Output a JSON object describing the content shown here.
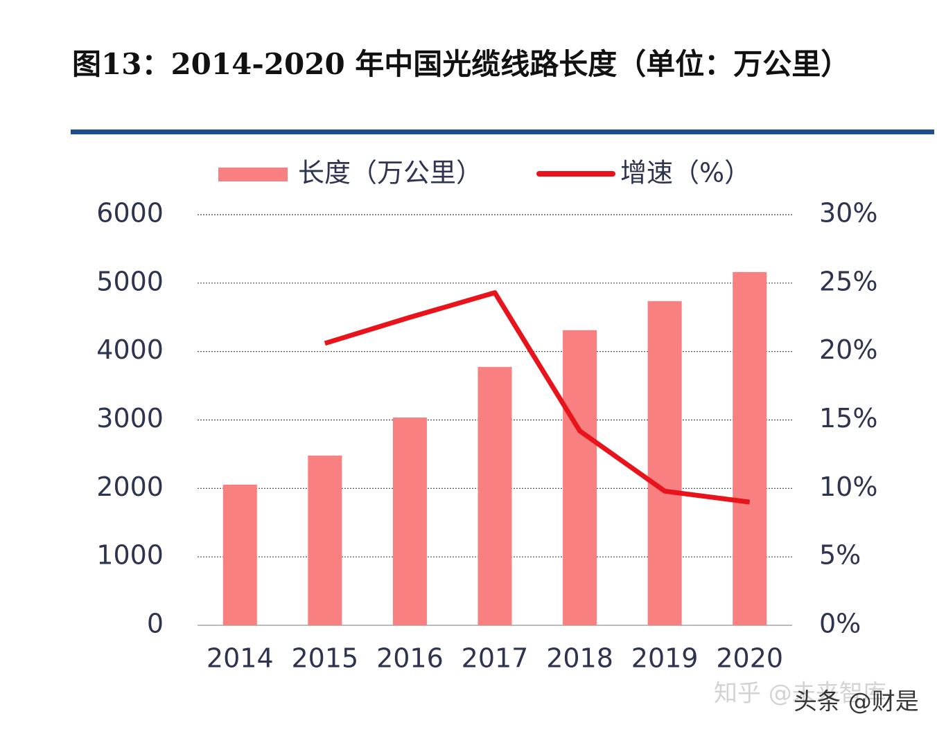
{
  "chart_data": {
    "type": "bar",
    "title": "图13：2014-2020 年中国光缆线路长度（单位：万公里）",
    "categories": [
      "2014",
      "2015",
      "2016",
      "2017",
      "2018",
      "2019",
      "2020"
    ],
    "series": [
      {
        "name": "长度（万公里）",
        "type": "bar",
        "color": "#f88080",
        "values": [
          2055,
          2480,
          3036,
          3775,
          4312,
          4737,
          5162
        ]
      },
      {
        "name": "增速（%）",
        "type": "line",
        "axis": "y2",
        "color": "#e8131b",
        "values": [
          null,
          20.6,
          22.5,
          24.3,
          14.2,
          9.8,
          9.0
        ]
      }
    ],
    "ylim": [
      0,
      6000
    ],
    "yticks": [
      0,
      1000,
      2000,
      3000,
      4000,
      5000,
      6000
    ],
    "y2lim": [
      0,
      30
    ],
    "y2ticks": [
      {
        "value": 0,
        "label": "0%"
      },
      {
        "value": 5,
        "label": "5%"
      },
      {
        "value": 10,
        "label": "10%"
      },
      {
        "value": 15,
        "label": "15%"
      },
      {
        "value": 20,
        "label": "20%"
      },
      {
        "value": 25,
        "label": "25%"
      },
      {
        "value": 30,
        "label": "30%"
      }
    ],
    "grid": true,
    "legend": "top",
    "watermarks": [
      "知乎 @未来智库",
      "头条 @财是"
    ]
  }
}
